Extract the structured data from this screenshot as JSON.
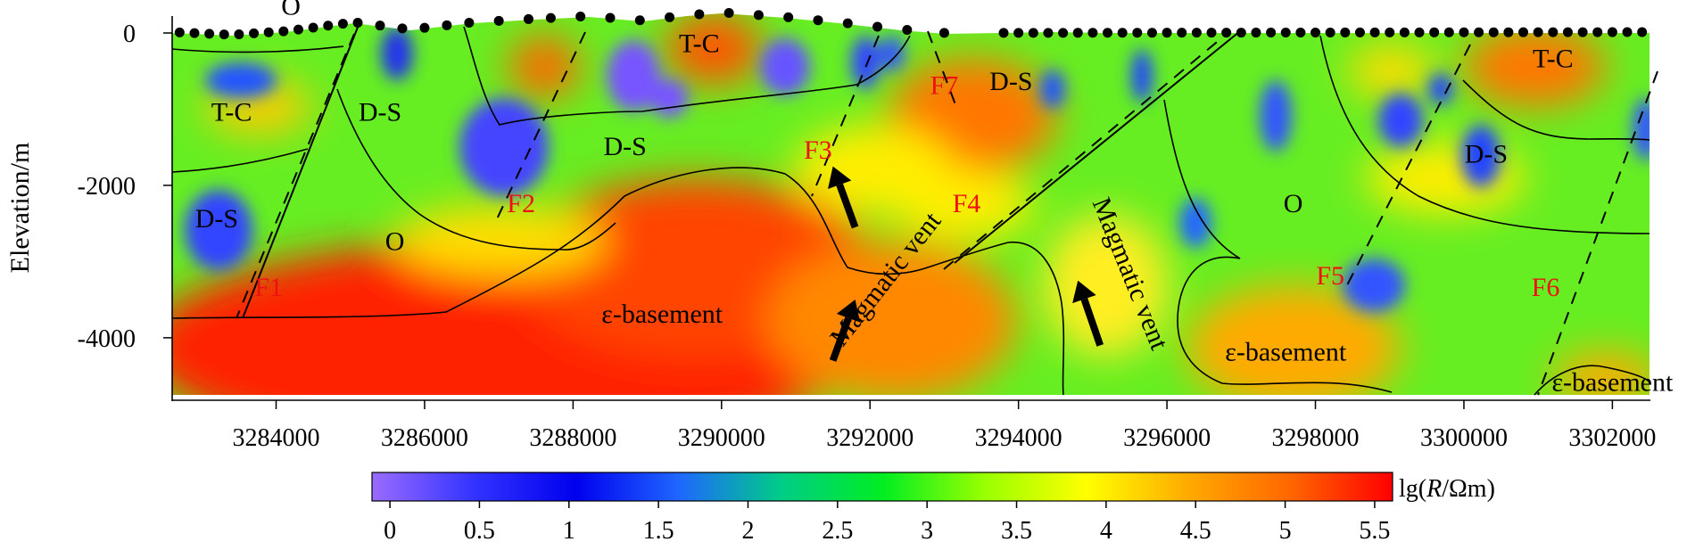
{
  "chart_data": {
    "type": "heatmap",
    "title": "",
    "xlabel": "",
    "ylabel": "Elevation/m",
    "xlim": [
      3282600,
      3302500
    ],
    "ylim": [
      -4750,
      0
    ],
    "x_ticks": [
      3284000,
      3286000,
      3288000,
      3290000,
      3292000,
      3294000,
      3296000,
      3298000,
      3300000,
      3302000
    ],
    "x_tick_labels": [
      "3284000",
      "3286000",
      "3288000",
      "3290000",
      "3292000",
      "3294000",
      "3296000",
      "3298000",
      "3300000",
      "3302000"
    ],
    "y_ticks": [
      0,
      -2000,
      -4000
    ],
    "y_tick_labels": [
      "0",
      "-2000",
      "-4000"
    ],
    "colorbar": {
      "label_prefix": "lg(",
      "label_var": "R",
      "label_suffix": "/Ωm)",
      "range": [
        -0.1,
        5.6
      ],
      "ticks": [
        0,
        0.5,
        1,
        1.5,
        2,
        2.5,
        3,
        3.5,
        4,
        4.5,
        5,
        5.5
      ],
      "tick_labels": [
        "0",
        "0.5",
        "1",
        "1.5",
        "2",
        "2.5",
        "3",
        "3.5",
        "4",
        "4.5",
        "5",
        "5.5"
      ],
      "colors": [
        "#9a6cff",
        "#3333ff",
        "#0000ee",
        "#1f66ff",
        "#00cc88",
        "#00ee22",
        "#99ff00",
        "#ffff00",
        "#ffaa00",
        "#ff6600",
        "#ff0000"
      ]
    },
    "stations_x": [
      3282700,
      3282900,
      3283100,
      3283300,
      3283500,
      3283700,
      3283900,
      3284100,
      3284300,
      3284500,
      3284700,
      3284900,
      3285100,
      3285400,
      3285700,
      3286000,
      3286300,
      3286600,
      3287000,
      3287400,
      3287700,
      3288100,
      3288500,
      3288900,
      3289300,
      3289700,
      3290100,
      3290500,
      3290900,
      3291300,
      3291700,
      3292100,
      3292500,
      3293000,
      3293800,
      3294000,
      3294200,
      3294400,
      3294600,
      3294800,
      3295000,
      3295200,
      3295400,
      3295600,
      3295800,
      3296000,
      3296200,
      3296400,
      3296600,
      3296800,
      3297000,
      3297200,
      3297400,
      3297600,
      3297800,
      3298000,
      3298200,
      3298400,
      3298600,
      3298800,
      3299000,
      3299200,
      3299400,
      3299600,
      3299800,
      3300000,
      3300200,
      3300400,
      3300600,
      3300800,
      3301000,
      3301200,
      3301400,
      3301600,
      3301800,
      3302000,
      3302200,
      3302400
    ],
    "unit_labels": [
      {
        "text": "O",
        "x": 3284200,
        "y": 240
      },
      {
        "text": "T-C",
        "x": 3283400,
        "y": -1150
      },
      {
        "text": "D-S",
        "x": 3283200,
        "y": -2550
      },
      {
        "text": "D-S",
        "x": 3285400,
        "y": -1150
      },
      {
        "text": "O",
        "x": 3285600,
        "y": -2850
      },
      {
        "text": "T-C",
        "x": 3289700,
        "y": -250
      },
      {
        "text": "D-S",
        "x": 3288700,
        "y": -1600
      },
      {
        "text": "D-S",
        "x": 3293900,
        "y": -750
      },
      {
        "text": "ε-basement",
        "x": 3289200,
        "y": -3800
      },
      {
        "text": "ε-basement",
        "x": 3297600,
        "y": -4300
      },
      {
        "text": "O",
        "x": 3297700,
        "y": -2350
      },
      {
        "text": "D-S",
        "x": 3300300,
        "y": -1700
      },
      {
        "text": "T-C",
        "x": 3301200,
        "y": -450
      },
      {
        "text": "ε-basement",
        "x": 3302000,
        "y": -4700
      }
    ],
    "fault_labels": [
      {
        "text": "F1",
        "x": 3283900,
        "y": -3450
      },
      {
        "text": "F2",
        "x": 3287300,
        "y": -2350
      },
      {
        "text": "F3",
        "x": 3291300,
        "y": -1650
      },
      {
        "text": "F4",
        "x": 3293300,
        "y": -2350
      },
      {
        "text": "F5",
        "x": 3298200,
        "y": -3300
      },
      {
        "text": "F6",
        "x": 3301100,
        "y": -3450
      },
      {
        "text": "F7",
        "x": 3293000,
        "y": -800
      }
    ],
    "vent_labels": [
      {
        "text": "Magmatic vent",
        "x": 3292300,
        "y": -3300,
        "angle": -52
      },
      {
        "text": "Magmatic vent",
        "x": 3295400,
        "y": -3200,
        "angle": 68
      }
    ],
    "arrows": [
      {
        "from": [
          3291500,
          -4300
        ],
        "to": [
          3291800,
          -3500
        ]
      },
      {
        "from": [
          3291800,
          -2550
        ],
        "to": [
          3291500,
          -1750
        ]
      },
      {
        "from": [
          3295100,
          -4100
        ],
        "to": [
          3294800,
          -3250
        ]
      }
    ]
  }
}
